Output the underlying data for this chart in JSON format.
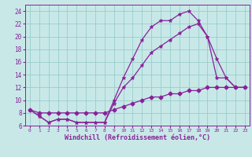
{
  "bg_color": "#c8e8e8",
  "grid_color": "#99cccc",
  "line_color": "#882299",
  "line1_x": [
    0,
    1,
    2,
    3,
    4,
    5,
    6,
    7,
    8,
    9,
    10,
    11,
    12,
    13,
    14,
    15,
    16,
    17,
    18,
    19,
    20,
    21,
    22,
    23
  ],
  "line1_y": [
    8.5,
    7.5,
    6.5,
    7.0,
    7.0,
    6.5,
    6.5,
    6.5,
    6.5,
    10.0,
    13.5,
    16.5,
    19.5,
    21.5,
    22.5,
    22.5,
    23.5,
    24.0,
    22.5,
    20.0,
    16.5,
    13.5,
    12.0,
    12.0
  ],
  "line2_x": [
    0,
    1,
    2,
    3,
    4,
    5,
    6,
    7,
    8,
    9,
    10,
    11,
    12,
    13,
    14,
    15,
    16,
    17,
    18,
    19,
    20,
    21,
    22,
    23
  ],
  "line2_y": [
    8.5,
    7.5,
    6.5,
    7.0,
    7.0,
    6.5,
    6.5,
    6.5,
    6.5,
    9.5,
    12.0,
    13.5,
    15.5,
    17.5,
    18.5,
    19.5,
    20.5,
    21.5,
    22.0,
    20.0,
    13.5,
    13.5,
    12.0,
    12.0
  ],
  "line3_x": [
    0,
    1,
    2,
    3,
    4,
    5,
    6,
    7,
    8,
    9,
    10,
    11,
    12,
    13,
    14,
    15,
    16,
    17,
    18,
    19,
    20,
    21,
    22,
    23
  ],
  "line3_y": [
    8.5,
    8.0,
    8.0,
    8.0,
    8.0,
    8.0,
    8.0,
    8.0,
    8.0,
    8.5,
    9.0,
    9.5,
    10.0,
    10.5,
    10.5,
    11.0,
    11.0,
    11.5,
    11.5,
    12.0,
    12.0,
    12.0,
    12.0,
    12.0
  ],
  "xlim": [
    -0.5,
    23.5
  ],
  "ylim": [
    6,
    25
  ],
  "xticks": [
    0,
    1,
    2,
    3,
    4,
    5,
    6,
    7,
    8,
    9,
    10,
    11,
    12,
    13,
    14,
    15,
    16,
    17,
    18,
    19,
    20,
    21,
    22,
    23
  ],
  "yticks": [
    6,
    8,
    10,
    12,
    14,
    16,
    18,
    20,
    22,
    24
  ],
  "xlabel": "Windchill (Refroidissement éolien,°C)"
}
